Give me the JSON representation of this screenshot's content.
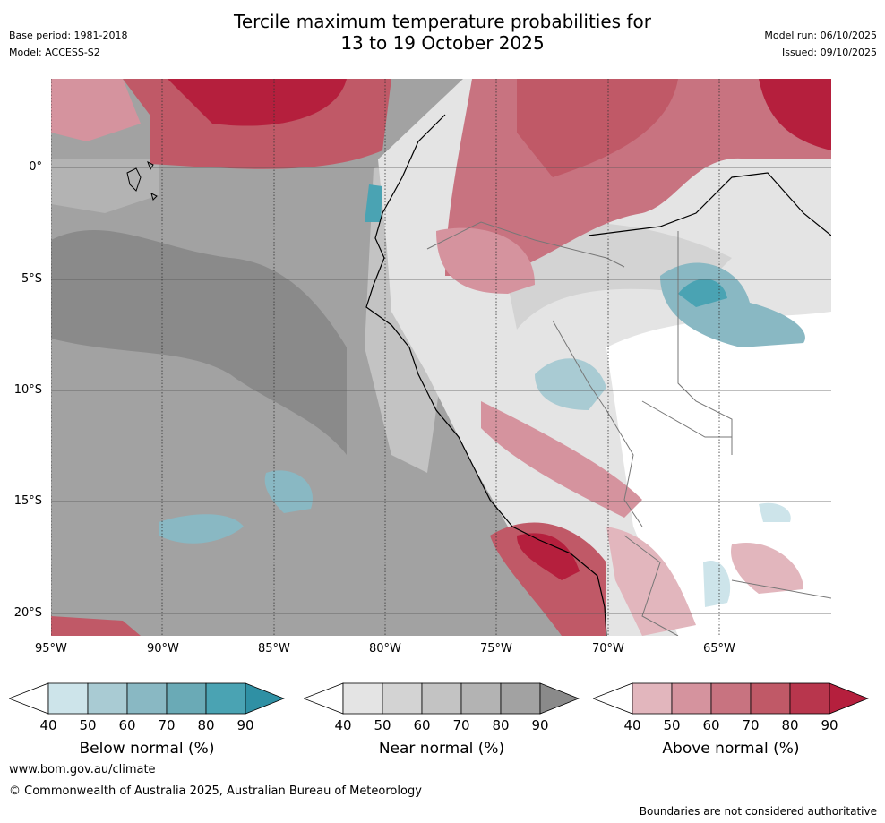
{
  "header": {
    "title_line1": "Tercile maximum temperature probabilities for",
    "title_line2": "13 to 19 October 2025",
    "base_period": "Base period: 1981-2018",
    "model": "Model: ACCESS-S2",
    "model_run": "Model run: 06/10/2025",
    "issued": "Issued: 09/10/2025"
  },
  "map": {
    "region": "Western South America and eastern Pacific",
    "lat_labels": [
      "0°",
      "5°S",
      "10°S",
      "15°S",
      "20°S"
    ],
    "lon_labels": [
      "95°W",
      "90°W",
      "85°W",
      "80°W",
      "75°W",
      "70°W",
      "65°W"
    ],
    "categories": {
      "below_normal_color": "#4aa3b3",
      "near_normal_color": "#8a8a8a",
      "above_normal_color": "#b51f3d"
    }
  },
  "colorbars": [
    {
      "label": "Below normal (%)",
      "ticks": [
        "40",
        "50",
        "60",
        "70",
        "80",
        "90"
      ],
      "colors": [
        "#ffffff",
        "#cde4ea",
        "#a9cbd3",
        "#89b8c3",
        "#6aaab6",
        "#4aa3b3",
        "#2f90a4"
      ]
    },
    {
      "label": "Near normal (%)",
      "ticks": [
        "40",
        "50",
        "60",
        "70",
        "80",
        "90"
      ],
      "colors": [
        "#ffffff",
        "#e4e4e4",
        "#d3d3d3",
        "#c3c3c3",
        "#b3b3b3",
        "#a2a2a2",
        "#8a8a8a"
      ]
    },
    {
      "label": "Above normal (%)",
      "ticks": [
        "40",
        "50",
        "60",
        "70",
        "80",
        "90"
      ],
      "colors": [
        "#ffffff",
        "#e2b6bd",
        "#d5939e",
        "#c87380",
        "#c05967",
        "#b8364d",
        "#b51f3d"
      ]
    }
  ],
  "footer": {
    "url": "www.bom.gov.au/climate",
    "copyright": "© Commonwealth of Australia 2025, Australian Bureau of Meteorology",
    "disclaimer": "Boundaries are not considered authoritative"
  }
}
